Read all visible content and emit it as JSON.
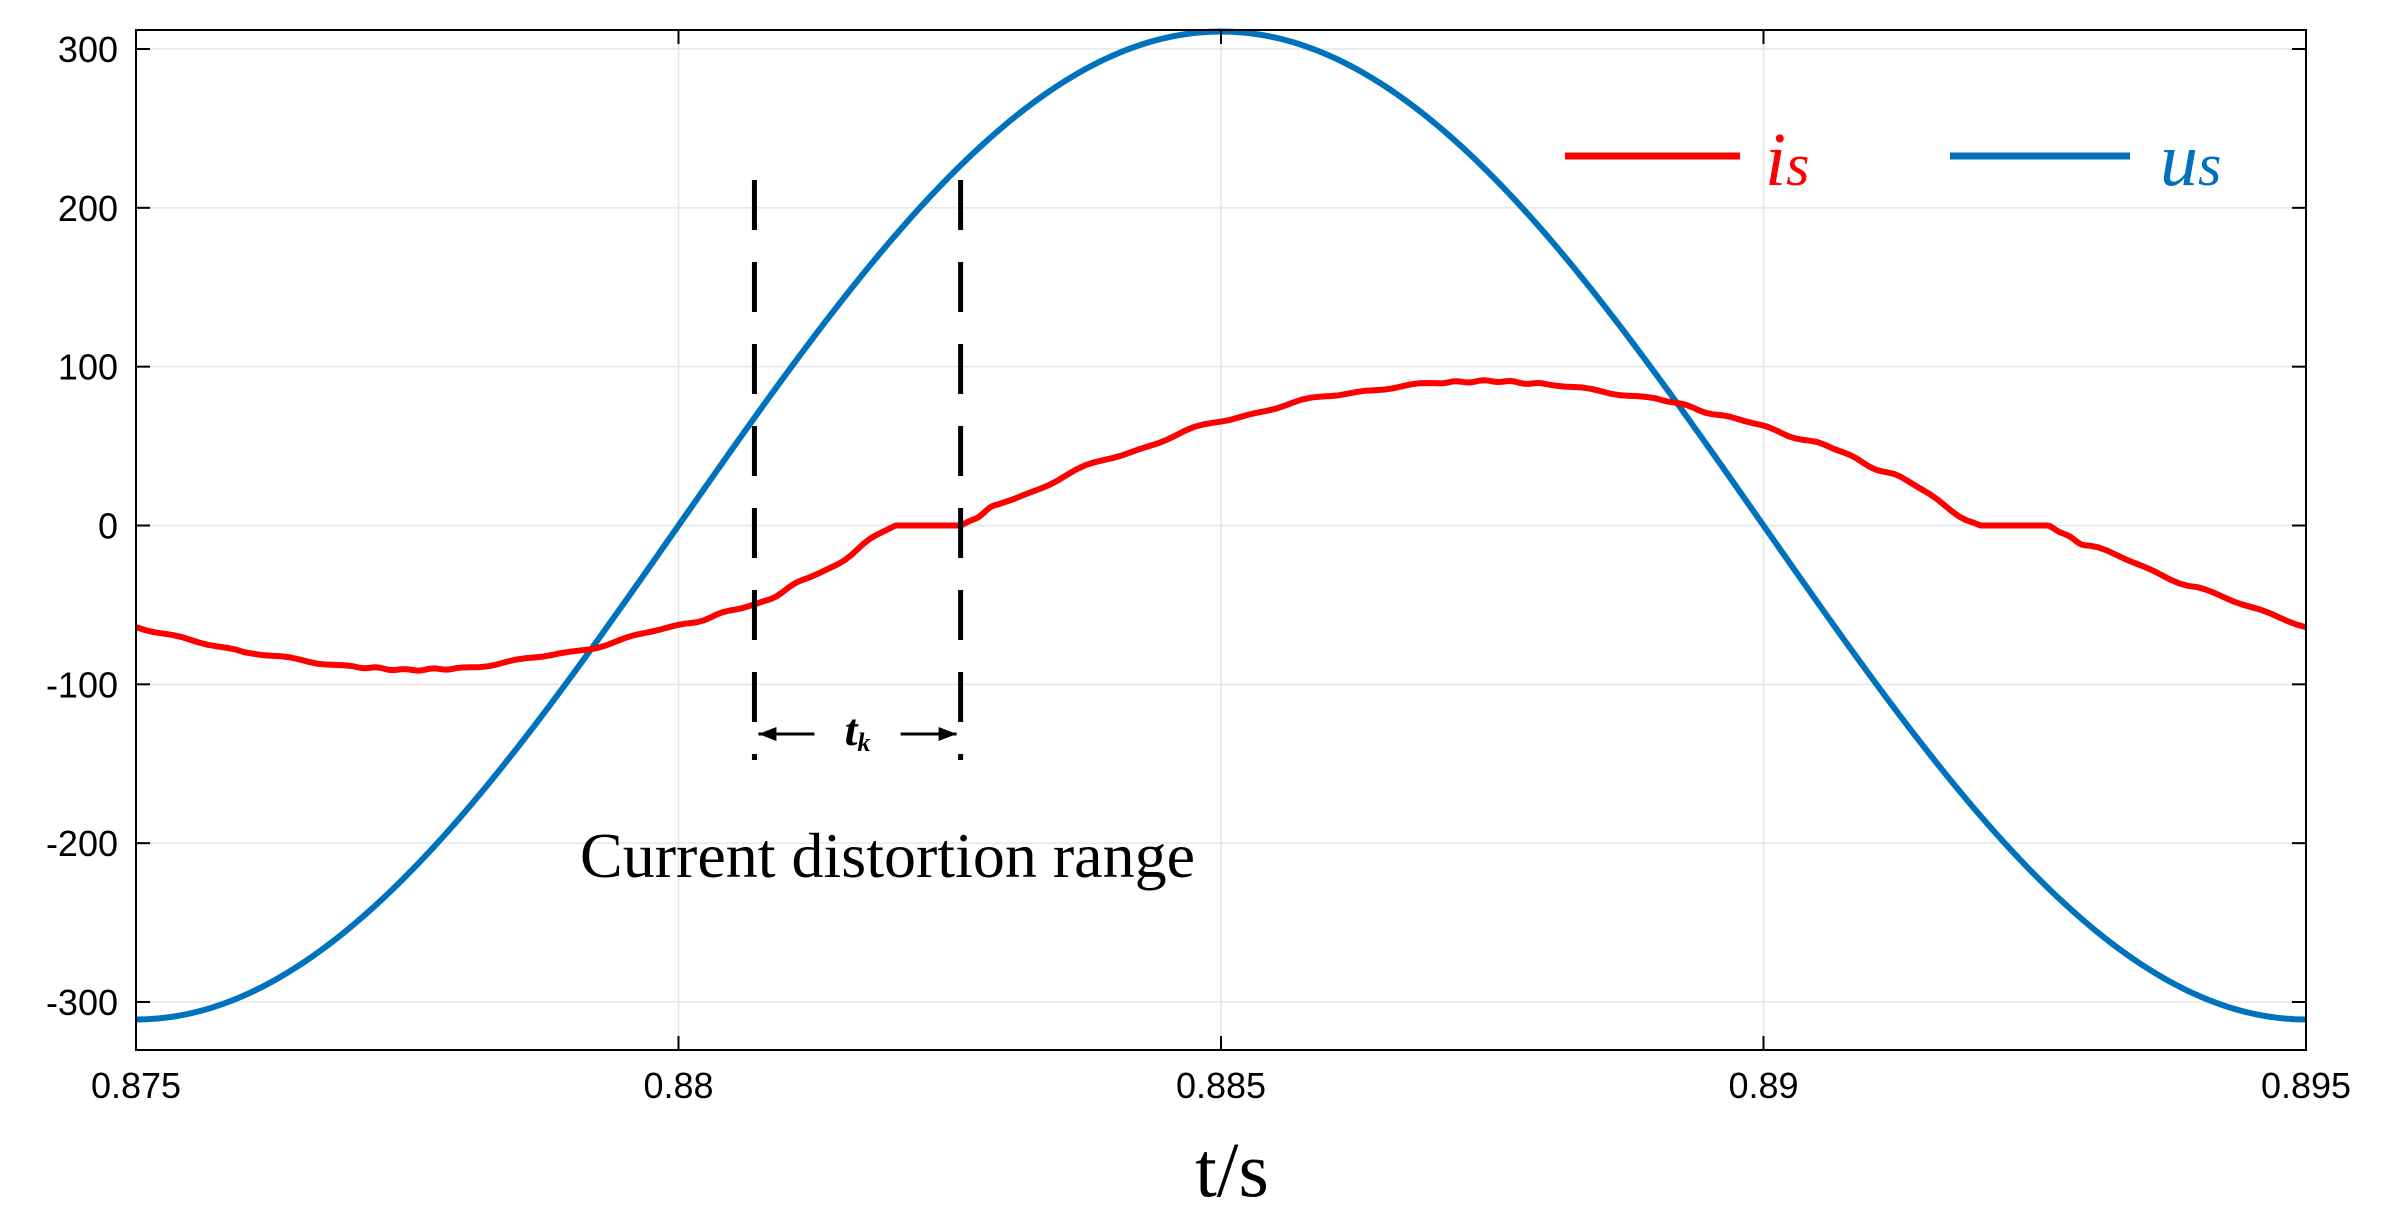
{
  "chart_data": {
    "type": "line",
    "title": "",
    "xlabel": "t/s",
    "ylabel": "",
    "xlim": [
      0.875,
      0.895
    ],
    "ylim": [
      -320,
      320
    ],
    "grid": true,
    "legend_position": "top-right",
    "x_ticks": [
      0.875,
      0.88,
      0.885,
      0.89,
      0.895
    ],
    "x_tick_labels": [
      "0.875",
      "0.88",
      "0.885",
      "0.89",
      "0.895"
    ],
    "y_ticks": [
      -300,
      -200,
      -100,
      0,
      100,
      200,
      300
    ],
    "y_tick_labels": [
      "-300",
      "-200",
      "-100",
      "0",
      "100",
      "200",
      "300"
    ],
    "series": [
      {
        "name": "us",
        "legend_main": "u",
        "legend_sub": "s",
        "color": "#0072BD",
        "x": [
          0.875,
          0.876,
          0.877,
          0.878,
          0.879,
          0.88,
          0.881,
          0.882,
          0.883,
          0.884,
          0.885,
          0.886,
          0.887,
          0.888,
          0.889,
          0.89,
          0.891,
          0.892,
          0.893,
          0.894,
          0.895
        ],
        "y": [
          -311,
          -296,
          -252,
          -183,
          -96,
          0,
          96,
          183,
          252,
          296,
          311,
          296,
          252,
          183,
          96,
          0,
          -96,
          -183,
          -252,
          -296,
          -311
        ]
      },
      {
        "name": "is",
        "legend_main": "i",
        "legend_sub": "s",
        "color": "#FF0000",
        "x": [
          0.875,
          0.876,
          0.877,
          0.8775,
          0.878,
          0.879,
          0.88,
          0.8807,
          0.8813,
          0.882,
          0.8826,
          0.883,
          0.884,
          0.885,
          0.886,
          0.887,
          0.8875,
          0.888,
          0.889,
          0.8897,
          0.8905,
          0.8912,
          0.892,
          0.8926,
          0.893,
          0.894,
          0.895
        ],
        "y": [
          -64,
          -80,
          -89,
          -91,
          -90,
          -80,
          -63,
          -50,
          -30,
          0,
          0,
          15,
          43,
          66,
          82,
          90,
          91,
          89,
          80,
          68,
          52,
          32,
          0,
          0,
          -13,
          -39,
          -64
        ]
      }
    ],
    "annotations": {
      "distortion_text": "Current distortion range",
      "tk_main": "t",
      "tk_sub": "k",
      "tk_start": 0.8807,
      "tk_end": 0.8826
    }
  }
}
